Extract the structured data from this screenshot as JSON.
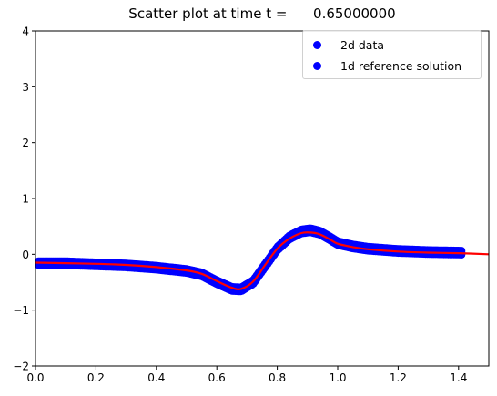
{
  "title": "Scatter plot at time t =      0.65000000",
  "legend": {
    "placement": "top-right",
    "entries": [
      "2d data",
      "1d reference solution"
    ]
  },
  "colors": {
    "scatter": "#0000ff",
    "reference_line": "#ff0000"
  },
  "chart_data": {
    "type": "scatter",
    "title": "Scatter plot at time t =      0.65000000",
    "xlabel": "",
    "ylabel": "",
    "xlim": [
      0.0,
      1.5
    ],
    "ylim": [
      -2,
      4
    ],
    "grid": false,
    "legend_placement": "top-right",
    "x_ticks": [
      "0.0",
      "0.2",
      "0.4",
      "0.6",
      "0.8",
      "1.0",
      "1.2",
      "1.4"
    ],
    "y_ticks": [
      "-2",
      "-1",
      "0",
      "1",
      "2",
      "3",
      "4"
    ],
    "series": [
      {
        "name": "2d data",
        "kind": "scatter",
        "color": "#0000ff",
        "x": [
          0.01,
          0.1,
          0.2,
          0.3,
          0.4,
          0.5,
          0.55,
          0.6,
          0.65,
          0.68,
          0.72,
          0.76,
          0.8,
          0.84,
          0.88,
          0.91,
          0.94,
          0.97,
          1.0,
          1.05,
          1.1,
          1.2,
          1.3,
          1.41
        ],
        "y": [
          -0.16,
          -0.16,
          -0.18,
          -0.2,
          -0.24,
          -0.3,
          -0.36,
          -0.5,
          -0.62,
          -0.63,
          -0.5,
          -0.2,
          0.1,
          0.3,
          0.41,
          0.43,
          0.39,
          0.3,
          0.2,
          0.14,
          0.1,
          0.06,
          0.04,
          0.03
        ]
      },
      {
        "name": "1d reference solution",
        "kind": "line",
        "color": "#ff0000",
        "x": [
          0.0,
          0.1,
          0.2,
          0.3,
          0.4,
          0.5,
          0.55,
          0.6,
          0.65,
          0.68,
          0.72,
          0.76,
          0.8,
          0.84,
          0.88,
          0.91,
          0.94,
          0.97,
          1.0,
          1.05,
          1.1,
          1.2,
          1.3,
          1.4,
          1.5
        ],
        "y": [
          -0.15,
          -0.16,
          -0.17,
          -0.19,
          -0.23,
          -0.29,
          -0.35,
          -0.48,
          -0.6,
          -0.62,
          -0.49,
          -0.19,
          0.1,
          0.28,
          0.38,
          0.39,
          0.36,
          0.28,
          0.19,
          0.13,
          0.09,
          0.05,
          0.03,
          0.02,
          0.0
        ]
      }
    ]
  }
}
